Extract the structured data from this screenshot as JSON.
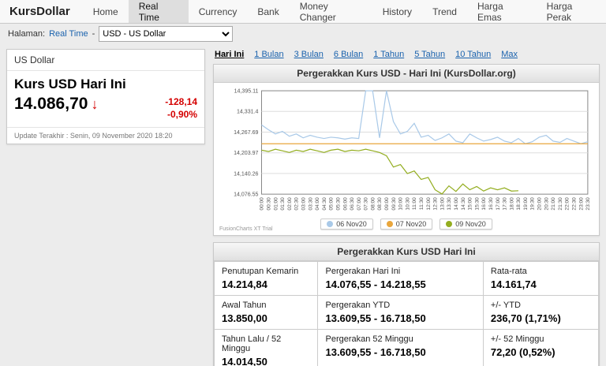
{
  "brand": "KursDollar",
  "nav": {
    "active": "Real Time",
    "items": [
      "Home",
      "Real Time",
      "Currency",
      "Bank",
      "Money Changer",
      "History",
      "Trend",
      "Harga Emas",
      "Harga Perak"
    ]
  },
  "breadcrumb": {
    "label": "Halaman:",
    "page": "Real Time",
    "separator": "-",
    "currency_select": "USD - US Dollar"
  },
  "quote_card": {
    "currency": "US Dollar",
    "title": "Kurs USD Hari Ini",
    "price": "14.086,70",
    "direction": "↓",
    "change": "-128,14",
    "change_pct": "-0,90%",
    "last_update": "Update Terakhir : Senin, 09 November 2020 18:20",
    "negative_color": "#d40000"
  },
  "range_tabs": {
    "active": "Hari Ini",
    "items": [
      "Hari Ini",
      "1 Bulan",
      "3 Bulan",
      "6 Bulan",
      "1 Tahun",
      "5 Tahun",
      "10 Tahun",
      "Max"
    ]
  },
  "chart_data": {
    "type": "line",
    "title": "Pergerakkan Kurs USD - Hari Ini (KursDollar.org)",
    "watermark": "FusionCharts XT Trial",
    "grid": true,
    "legend_position": "bottom",
    "xlabel": "",
    "ylabel": "",
    "ylim": [
      14076.55,
      14395.11
    ],
    "yticks": {
      "labels": [
        "14,395.11",
        "14,331.4",
        "14,267.69",
        "14,203.97",
        "14,140.26",
        "14,076.55"
      ],
      "values": [
        14395.11,
        14331.4,
        14267.69,
        14203.97,
        14140.26,
        14076.55
      ]
    },
    "x": [
      "00:00",
      "00:30",
      "01:00",
      "01:30",
      "02:00",
      "02:30",
      "03:00",
      "03:30",
      "04:00",
      "04:30",
      "05:00",
      "05:30",
      "06:00",
      "06:30",
      "07:00",
      "07:30",
      "08:00",
      "08:30",
      "09:00",
      "09:30",
      "10:00",
      "10:30",
      "11:00",
      "11:30",
      "12:00",
      "12:30",
      "13:00",
      "13:30",
      "14:00",
      "14:30",
      "15:00",
      "15:30",
      "16:00",
      "16:30",
      "17:00",
      "17:30",
      "18:00",
      "18:30",
      "19:00",
      "19:30",
      "20:00",
      "20:30",
      "21:00",
      "21:30",
      "22:00",
      "22:30",
      "23:00",
      "23:30"
    ],
    "series": [
      {
        "name": "06 Nov20",
        "color": "#a9c9e8",
        "values": [
          14290,
          14275,
          14262,
          14270,
          14255,
          14262,
          14250,
          14258,
          14252,
          14248,
          14252,
          14250,
          14246,
          14250,
          14248,
          14395,
          14395,
          14250,
          14395,
          14300,
          14262,
          14270,
          14295,
          14252,
          14258,
          14242,
          14250,
          14262,
          14240,
          14235,
          14262,
          14250,
          14240,
          14245,
          14252,
          14240,
          14235,
          14248,
          14232,
          14238,
          14252,
          14258,
          14240,
          14236,
          14248,
          14240,
          14232,
          14238
        ]
      },
      {
        "name": "07 Nov20",
        "color": "#e9a63c",
        "values": [
          14232,
          14232,
          14232,
          14232,
          14232,
          14232,
          14232,
          14232,
          14232,
          14232,
          14232,
          14232,
          14232,
          14232,
          14232,
          14232,
          14232,
          14232,
          14232,
          14232,
          14232,
          14232,
          14232,
          14232,
          14232,
          14232,
          14232,
          14232,
          14232,
          14232,
          14232,
          14232,
          14232,
          14232,
          14232,
          14232,
          14232,
          14232,
          14232,
          14232,
          14232,
          14232,
          14232,
          14232,
          14232,
          14232,
          14232,
          14232
        ]
      },
      {
        "name": "09 Nov20",
        "color": "#93ad1f",
        "values": [
          14212,
          14208,
          14215,
          14210,
          14205,
          14212,
          14208,
          14215,
          14210,
          14205,
          14212,
          14215,
          14208,
          14212,
          14210,
          14215,
          14210,
          14205,
          14195,
          14160,
          14168,
          14140,
          14148,
          14122,
          14128,
          14090,
          14077,
          14102,
          14085,
          14108,
          14090,
          14100,
          14086,
          14096,
          14090,
          14096,
          14086,
          14087
        ]
      }
    ]
  },
  "stats_table": {
    "title": "Pergerakkan Kurs USD Hari Ini",
    "rows": [
      [
        {
          "label": "Penutupan Kemarin",
          "value": "14.214,84"
        },
        {
          "label": "Pergerakan Hari Ini",
          "value": "14.076,55 - 14.218,55"
        },
        {
          "label": "Rata-rata",
          "value": "14.161,74"
        }
      ],
      [
        {
          "label": "Awal Tahun",
          "value": "13.850,00"
        },
        {
          "label": "Pergerakan YTD",
          "value": "13.609,55 - 16.718,50"
        },
        {
          "label": "+/- YTD",
          "value": "236,70 (1,71%)"
        }
      ],
      [
        {
          "label": "Tahun Lalu / 52 Minggu",
          "value": "14.014,50"
        },
        {
          "label": "Pergerakan 52 Minggu",
          "value": "13.609,55 - 16.718,50"
        },
        {
          "label": "+/- 52 Minggu",
          "value": "72,20 (0,52%)"
        }
      ]
    ]
  }
}
